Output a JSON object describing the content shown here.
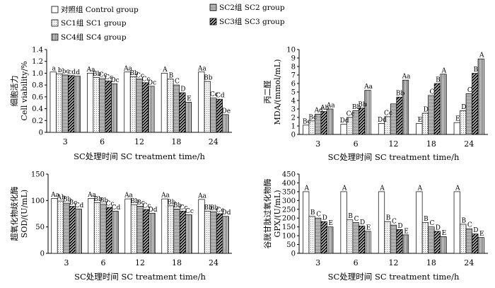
{
  "legend": {
    "items": [
      {
        "key": "control",
        "label": "对照组 Control group",
        "fill": "#ffffff",
        "pattern": "none"
      },
      {
        "key": "sc1",
        "label": "SC1组 SC1 group",
        "fill": "#f0f0f0",
        "pattern": "dots"
      },
      {
        "key": "sc2",
        "label": "SC2组 SC2 group",
        "fill": "#b0b0b0",
        "pattern": "hlines"
      },
      {
        "key": "sc3",
        "label": "SC3组 SC3 group",
        "fill": "#1a1a1a",
        "pattern": "diag"
      },
      {
        "key": "sc4",
        "label": "SC4组 SC4 group",
        "fill": "#d8d8d8",
        "pattern": "vlines"
      }
    ]
  },
  "chart_data": [
    {
      "id": "cell-viability",
      "type": "bar",
      "title": "",
      "xlabel": "SC处理时间  SC  treatment time/h",
      "ylabel": "细胞活力",
      "ylabel2": "Cell viability/%",
      "categories": [
        "3",
        "6",
        "12",
        "18",
        "24"
      ],
      "ylim": [
        0,
        1.4
      ],
      "yticks": [
        "0",
        "0.2",
        "0.4",
        "0.6",
        "0.8",
        "1.0",
        "1.2",
        "1.4"
      ],
      "series": [
        {
          "name": "对照组 Control group",
          "values": [
            1.02,
            1.0,
            1.02,
            1.0,
            1.02
          ]
        },
        {
          "name": "SC1组 SC1 group",
          "values": [
            0.99,
            0.93,
            0.94,
            0.9,
            0.86
          ]
        },
        {
          "name": "SC2组 SC2 group",
          "values": [
            0.97,
            0.91,
            0.9,
            0.8,
            0.58
          ]
        },
        {
          "name": "SC3组 SC3 group",
          "values": [
            0.96,
            0.87,
            0.84,
            0.67,
            0.56
          ]
        },
        {
          "name": "SC4组 SC4 group",
          "values": [
            0.95,
            0.82,
            0.78,
            0.51,
            0.3
          ]
        }
      ],
      "labels": [
        [
          "a",
          "b",
          "bc",
          "cd",
          "d"
        ],
        [
          "Aa",
          "Bb",
          "Cc",
          "Cc",
          "Dc"
        ],
        [
          "Aa",
          "Bb",
          "Cc",
          "Cc",
          "Dc"
        ],
        [
          "A",
          "B",
          "C",
          "D",
          "E"
        ],
        [
          "Aa",
          "Bb",
          "Cc",
          "Cd",
          "De"
        ]
      ]
    },
    {
      "id": "mda",
      "type": "bar",
      "title": "",
      "xlabel": "SC处理时间  SC  treatment time/h",
      "ylabel": "丙二醛",
      "ylabel2": "MDA/(mmol/mL)",
      "categories": [
        "3",
        "6",
        "12",
        "18",
        "24"
      ],
      "ylim": [
        0,
        10
      ],
      "yticks": [
        "0",
        "1",
        "2",
        "3",
        "4",
        "5",
        "6",
        "7",
        "8",
        "9",
        "10"
      ],
      "series": [
        {
          "name": "对照组 Control group",
          "values": [
            1.1,
            1.2,
            1.3,
            1.3,
            1.4
          ]
        },
        {
          "name": "SC1组 SC1 group",
          "values": [
            1.6,
            2.0,
            2.1,
            2.5,
            2.8
          ]
        },
        {
          "name": "SC2组 SC2 group",
          "values": [
            2.4,
            2.8,
            3.6,
            4.6,
            4.8
          ]
        },
        {
          "name": "SC3组 SC3 group",
          "values": [
            2.7,
            3.1,
            4.4,
            6.0,
            7.2
          ]
        },
        {
          "name": "SC4组 SC4 group",
          "values": [
            3.0,
            5.2,
            6.4,
            7.1,
            8.9
          ]
        }
      ],
      "labels": [
        [
          "Bc",
          "Bc",
          "Ad",
          "Ab",
          "Aa"
        ],
        [
          "Dd",
          "Cc",
          "Bb",
          "Bb",
          "Aa"
        ],
        [
          "Dd",
          "Cc",
          "Bb",
          "Aa"
        ],
        [
          "E",
          "D",
          "C",
          "B",
          "A"
        ],
        [
          "E",
          "D",
          "C",
          "B",
          "A"
        ]
      ],
      "label_series": [
        [
          0,
          1,
          2,
          3,
          4
        ],
        [
          0,
          1,
          2,
          3,
          4
        ],
        [
          0,
          1,
          3,
          4
        ],
        [
          0,
          1,
          2,
          3,
          4
        ],
        [
          0,
          1,
          2,
          3,
          4
        ]
      ]
    },
    {
      "id": "sod",
      "type": "bar",
      "title": "",
      "xlabel": "SC处理时间  SC  treatment time/h",
      "ylabel": "超氧化物歧化酶",
      "ylabel2": "SOD/(U/mL)",
      "categories": [
        "3",
        "6",
        "12",
        "18",
        "24"
      ],
      "ylim": [
        0,
        150
      ],
      "yticks": [
        "0",
        "50",
        "100",
        "150"
      ],
      "series": [
        {
          "name": "对照组 Control group",
          "values": [
            104,
            104,
            103,
            103,
            102
          ]
        },
        {
          "name": "SC1组 SC1 group",
          "values": [
            99,
            96,
            92,
            90,
            80
          ]
        },
        {
          "name": "SC2组 SC2 group",
          "values": [
            95,
            93,
            89,
            84,
            79
          ]
        },
        {
          "name": "SC3组 SC3 group",
          "values": [
            89,
            87,
            83,
            80,
            75
          ]
        },
        {
          "name": "SC4组 SC4 group",
          "values": [
            84,
            80,
            76,
            73,
            70
          ]
        }
      ],
      "labels": [
        [
          "Aa",
          "Ab",
          "Bb",
          "Bc",
          "Cd"
        ],
        [
          "Aa",
          "Bb",
          "Bb",
          "Cc",
          "Cd"
        ],
        [
          "Aa",
          "Bb",
          "Bc",
          "Cc",
          "Dd"
        ],
        [
          "Aa",
          "Bb",
          "Bb",
          "Cc",
          "Cc"
        ],
        [
          "Aa",
          "Bb",
          "Bb",
          "Cc",
          "Dd"
        ]
      ]
    },
    {
      "id": "gpx",
      "type": "bar",
      "title": "",
      "xlabel": "SC处理时间  SC  treatment time/h",
      "ylabel": "谷胱甘肽过氧化物酶",
      "ylabel2": "GPX/(U/mL)",
      "categories": [
        "3",
        "6",
        "12",
        "18",
        "24"
      ],
      "ylim": [
        0,
        450
      ],
      "yticks": [
        "0",
        "50",
        "100",
        "150",
        "200",
        "250",
        "300",
        "350",
        "400",
        "450"
      ],
      "series": [
        {
          "name": "对照组 Control group",
          "values": [
            350,
            350,
            350,
            350,
            350
          ]
        },
        {
          "name": "SC1组 SC1 group",
          "values": [
            210,
            190,
            180,
            175,
            165
          ]
        },
        {
          "name": "SC2组 SC2 group",
          "values": [
            200,
            175,
            160,
            150,
            140
          ]
        },
        {
          "name": "SC3组 SC3 group",
          "values": [
            180,
            155,
            135,
            125,
            110
          ]
        },
        {
          "name": "SC4组 SC4 group",
          "values": [
            150,
            125,
            105,
            95,
            90
          ]
        }
      ],
      "labels": [
        [
          "A",
          "B",
          "C",
          "D",
          "E"
        ],
        [
          "A",
          "B",
          "C",
          "D",
          "E"
        ],
        [
          "A",
          "B",
          "C",
          "D",
          "E"
        ],
        [
          "A",
          "B",
          "C",
          "D",
          "E"
        ],
        [
          "A",
          "B",
          "C",
          "D",
          "E"
        ]
      ]
    }
  ]
}
